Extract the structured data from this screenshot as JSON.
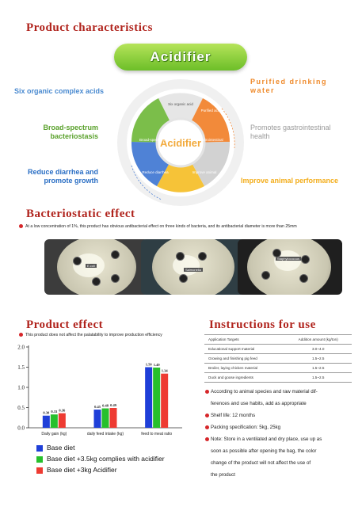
{
  "sections": {
    "characteristics_title": "Product characteristics",
    "bacteriostatic_title": "Bacteriostatic effect",
    "effect_title": "Product effect",
    "instructions_title": "Instructions for use"
  },
  "pill_label": "Acidifier",
  "wheel": {
    "center_label": "Acidifier",
    "segments": [
      "Six organic acid",
      "Purified acid",
      "Broad-spectrum",
      "Gastrointestinal",
      "Reduce diarrhea",
      "Improve animal"
    ],
    "colors": [
      "#e8e8e8",
      "#f28a3a",
      "#cfcfcf",
      "#d8d8d8",
      "#4f82d6",
      "#f6c338",
      "#7bbe4a"
    ]
  },
  "features": {
    "left": [
      "Six organic complex acids",
      "Broad-spectrum bacteriostasis",
      "Reduce diarrhea and promote growth"
    ],
    "right": [
      "Purified drinking water",
      "Promotes gastrointestinal health",
      "Improve animal performance"
    ]
  },
  "bacteriostatic_text": "At a low concentration of 1%, this product has obvious antibacterial effect on three kinds of bacteria, and its antibacterial diameter is more than 25mm",
  "petri_labels": [
    "E.coli",
    "Salmonella",
    "Staphylococcus"
  ],
  "effect_text": "This product does not affect the palatability to improve production efficiency",
  "chart_data": {
    "type": "bar",
    "categories": [
      "Daily gain (kg)",
      "daily feed intake (kg)",
      "feed to meat ratio"
    ],
    "series": [
      {
        "name": "Base diet",
        "color": "#1f3fd8",
        "values": [
          0.3,
          0.45,
          1.5
        ]
      },
      {
        "name": "Base diet +3.5kg complies with acidifier",
        "color": "#27c02c",
        "values": [
          0.33,
          0.48,
          1.49
        ]
      },
      {
        "name": "Base diet +3kg Acidifier",
        "color": "#ee3b32",
        "values": [
          0.36,
          0.49,
          1.34
        ]
      }
    ],
    "value_labels": [
      [
        "0.30",
        "0.33",
        "0.36"
      ],
      [
        "0.45",
        "0.48",
        "0.49"
      ],
      [
        "1.50",
        "1.49",
        "1.34"
      ]
    ],
    "yticks": [
      "0.0",
      "0.5",
      "1.0",
      "1.5",
      "2.0"
    ],
    "ylim": [
      0,
      2.0
    ]
  },
  "instructions": {
    "headers": [
      "Application Targets",
      "Addition amount (kg/ton)"
    ],
    "rows": [
      [
        "Educational support material",
        "3.0~4.0"
      ],
      [
        "Growing and finishing pig feed",
        "1.5~2.5"
      ],
      [
        "Broiler, laying chicken material",
        "1.5~2.5"
      ],
      [
        "Duck and goose ingredients",
        "1.5~2.5"
      ]
    ],
    "bullets": [
      [
        "According to animal species and raw material dif-",
        "ferences and use habits, add as appropriate"
      ],
      [
        "Shelf life: 12 months"
      ],
      [
        "Packing specification: 5kg, 25kg"
      ],
      [
        "Note: Store in a ventilated and dry place, use up as",
        "soon as possible after opening the bag, the color",
        "change of the product will not affect the use of",
        "the product"
      ]
    ]
  }
}
